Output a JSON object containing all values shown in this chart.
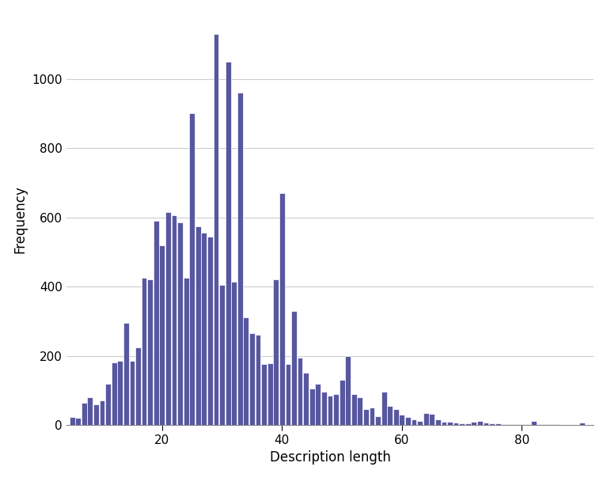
{
  "bar_color": "#5757a0",
  "bar_edgecolor": "#ffffff",
  "xlabel": "Description length",
  "ylabel": "Frequency",
  "background_color": "#ffffff",
  "xlim": [
    4,
    92
  ],
  "ylim": [
    0,
    1190
  ],
  "yticks": [
    0,
    200,
    400,
    600,
    800,
    1000
  ],
  "xticks": [
    20,
    40,
    60,
    80
  ],
  "grid_color": "#cccccc",
  "xlabel_fontsize": 12,
  "ylabel_fontsize": 12,
  "tick_fontsize": 11,
  "figsize": [
    7.67,
    6.04
  ],
  "values": {
    "5": 22,
    "6": 20,
    "7": 65,
    "8": 80,
    "9": 60,
    "10": 70,
    "11": 120,
    "12": 180,
    "13": 185,
    "14": 295,
    "15": 185,
    "16": 225,
    "17": 425,
    "18": 420,
    "19": 590,
    "20": 520,
    "21": 615,
    "22": 605,
    "23": 585,
    "24": 425,
    "25": 900,
    "26": 575,
    "27": 555,
    "28": 545,
    "29": 1130,
    "30": 405,
    "31": 1050,
    "32": 415,
    "33": 960,
    "34": 310,
    "35": 265,
    "36": 260,
    "37": 175,
    "38": 178,
    "39": 420,
    "40": 670,
    "41": 175,
    "42": 330,
    "43": 195,
    "44": 150,
    "45": 105,
    "46": 120,
    "47": 95,
    "48": 85,
    "49": 90,
    "50": 130,
    "51": 200,
    "52": 90,
    "53": 80,
    "54": 45,
    "55": 50,
    "56": 25,
    "57": 95,
    "58": 55,
    "59": 45,
    "60": 30,
    "61": 22,
    "62": 15,
    "63": 12,
    "64": 35,
    "65": 32,
    "66": 15,
    "67": 10,
    "68": 8,
    "69": 7,
    "70": 5,
    "71": 5,
    "72": 8,
    "73": 12,
    "74": 7,
    "75": 5,
    "76": 4,
    "77": 3,
    "78": 3,
    "79": 2,
    "80": 2,
    "81": 2,
    "82": 12,
    "83": 3,
    "84": 2,
    "85": 2,
    "86": 2,
    "87": 1,
    "88": 1,
    "89": 1,
    "90": 7
  }
}
